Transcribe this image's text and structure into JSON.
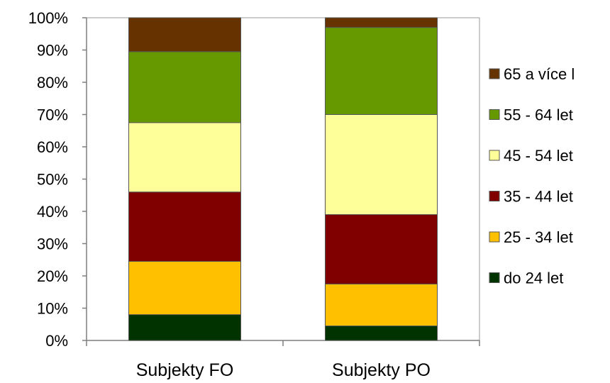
{
  "chart_data": {
    "type": "bar",
    "stacked": true,
    "percent": true,
    "categories": [
      "Subjekty FO",
      "Subjekty PO"
    ],
    "series": [
      {
        "name": "do 24 let",
        "values": [
          8,
          4.5
        ],
        "color": "#003300"
      },
      {
        "name": "25 - 34 let",
        "values": [
          16.5,
          13
        ],
        "color": "#ffc000"
      },
      {
        "name": "35 - 44 let",
        "values": [
          21.5,
          21.5
        ],
        "color": "#800000"
      },
      {
        "name": "45 - 54 let",
        "values": [
          21.5,
          31
        ],
        "color": "#ffff99"
      },
      {
        "name": "55 - 64 let",
        "values": [
          22,
          27
        ],
        "color": "#669900"
      },
      {
        "name": "65 a více l",
        "values": [
          10.5,
          3
        ],
        "color": "#663300"
      }
    ],
    "y_ticks": [
      "0%",
      "10%",
      "20%",
      "30%",
      "40%",
      "50%",
      "60%",
      "70%",
      "80%",
      "90%",
      "100%"
    ],
    "ylim": [
      0,
      100
    ],
    "grid": false,
    "legend_position": "right",
    "title": "",
    "xlabel": "",
    "ylabel": ""
  }
}
